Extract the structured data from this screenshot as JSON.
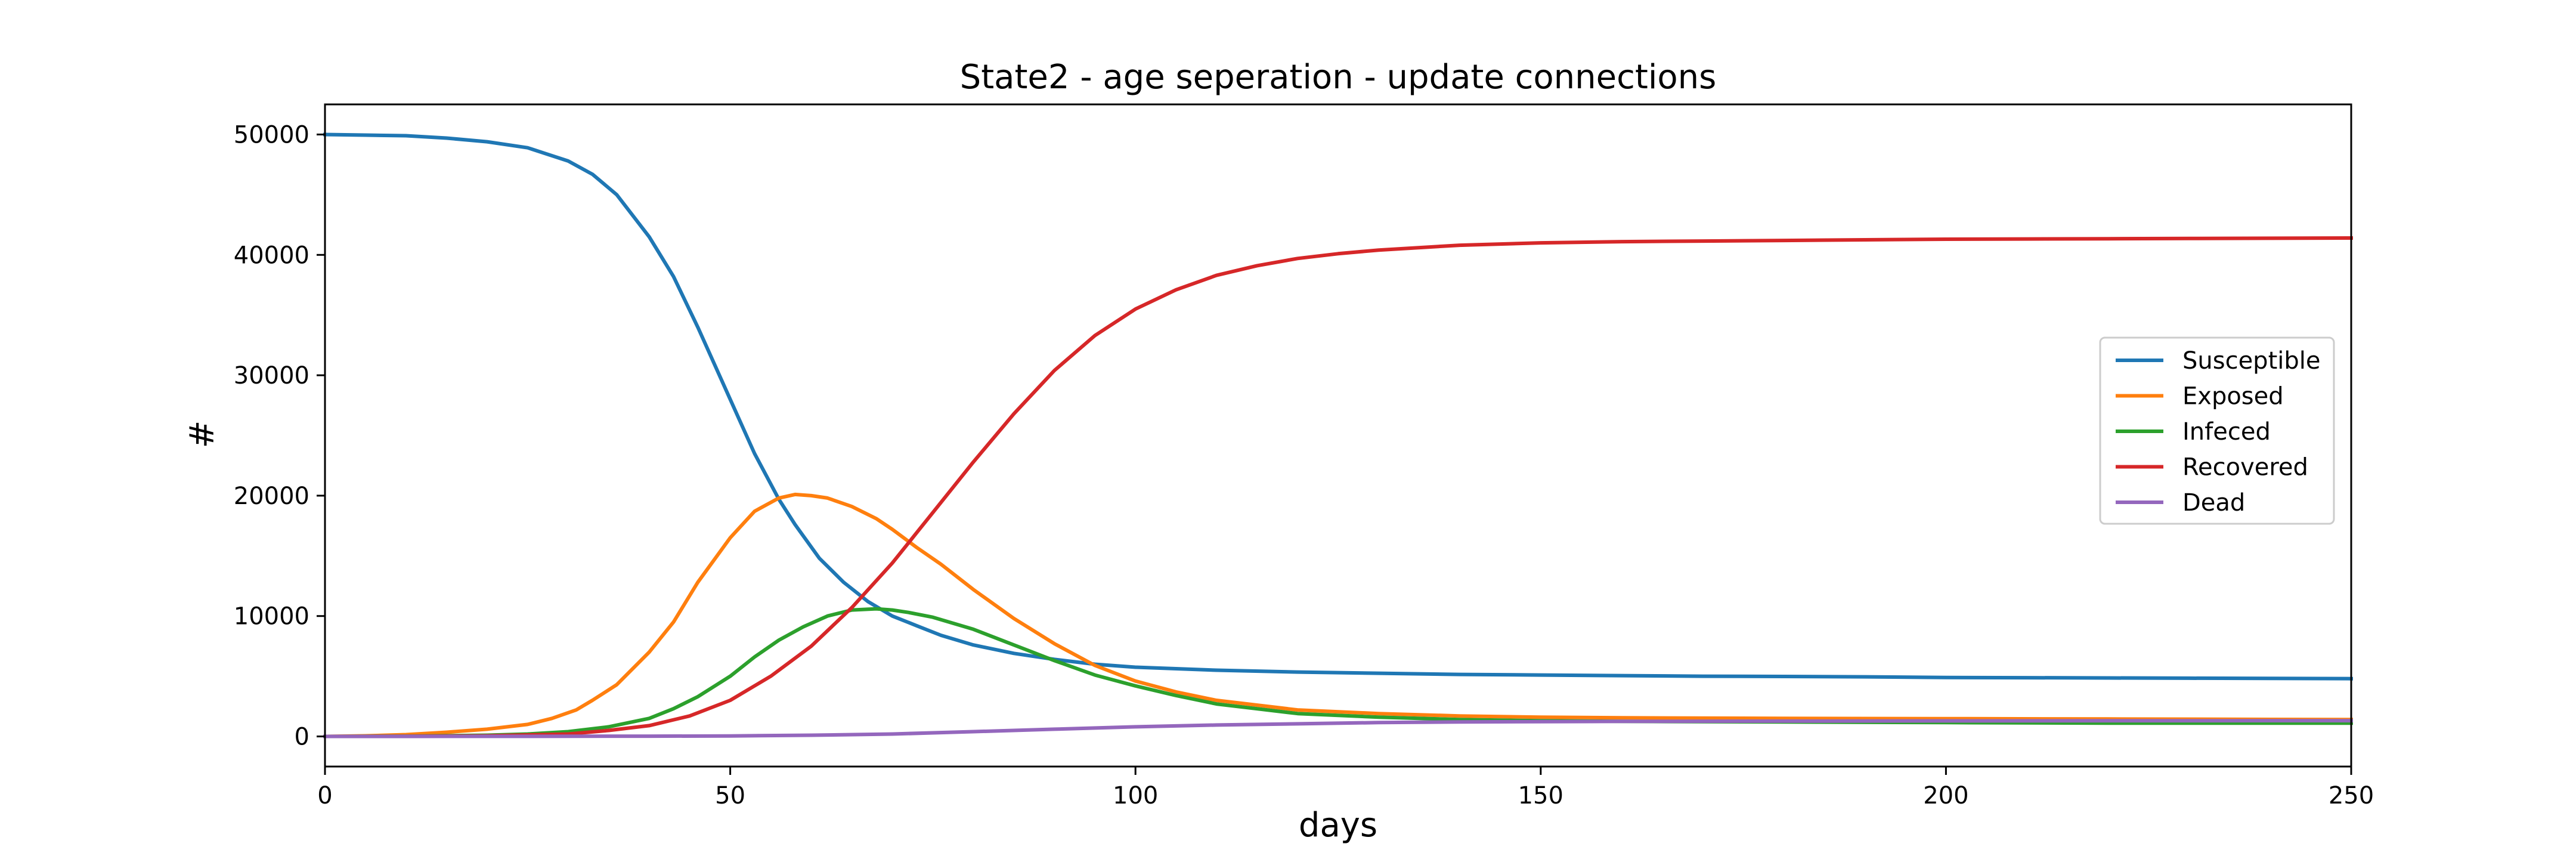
{
  "chart_data": {
    "type": "line",
    "title": "State2 - age seperation - update connections",
    "xlabel": "days",
    "ylabel": "#",
    "xlim": [
      0,
      250
    ],
    "ylim": [
      -2500,
      52500
    ],
    "xticks": [
      0,
      50,
      100,
      150,
      200,
      250
    ],
    "yticks": [
      0,
      10000,
      20000,
      30000,
      40000,
      50000
    ],
    "grid": false,
    "legend_position": "center-right",
    "series": [
      {
        "name": "Susceptible",
        "color": "#1f77b4",
        "x": [
          0,
          5,
          10,
          15,
          20,
          25,
          30,
          33,
          36,
          40,
          43,
          46,
          50,
          53,
          56,
          58,
          61,
          64,
          67,
          70,
          73,
          76,
          80,
          85,
          90,
          95,
          100,
          110,
          120,
          130,
          140,
          150,
          160,
          170,
          180,
          190,
          200,
          210,
          220,
          230,
          240,
          250
        ],
        "y": [
          50000,
          49950,
          49900,
          49700,
          49400,
          48900,
          47800,
          46700,
          45000,
          41500,
          38200,
          34000,
          28000,
          23500,
          19700,
          17600,
          14800,
          12800,
          11200,
          10000,
          9200,
          8400,
          7600,
          6900,
          6400,
          6000,
          5750,
          5500,
          5350,
          5250,
          5150,
          5100,
          5050,
          5000,
          4980,
          4950,
          4900,
          4880,
          4860,
          4840,
          4820,
          4800
        ]
      },
      {
        "name": "Exposed",
        "color": "#ff7f0e",
        "x": [
          0,
          5,
          10,
          15,
          20,
          25,
          28,
          31,
          33,
          36,
          40,
          43,
          46,
          50,
          53,
          56,
          58,
          60,
          62,
          65,
          68,
          70,
          73,
          76,
          80,
          85,
          90,
          95,
          100,
          105,
          110,
          120,
          130,
          140,
          150,
          160,
          180,
          200,
          220,
          250
        ],
        "y": [
          0,
          50,
          150,
          350,
          600,
          1000,
          1500,
          2200,
          3000,
          4300,
          7000,
          9500,
          12800,
          16500,
          18700,
          19800,
          20100,
          20000,
          19800,
          19100,
          18100,
          17200,
          15700,
          14300,
          12200,
          9800,
          7700,
          5900,
          4600,
          3700,
          3000,
          2200,
          1900,
          1700,
          1600,
          1550,
          1500,
          1480,
          1450,
          1400
        ]
      },
      {
        "name": "Infeced",
        "color": "#2ca02c",
        "x": [
          0,
          10,
          20,
          25,
          30,
          35,
          40,
          43,
          46,
          50,
          53,
          56,
          59,
          62,
          65,
          68,
          70,
          72,
          75,
          80,
          85,
          90,
          95,
          100,
          105,
          110,
          115,
          120,
          130,
          140,
          150,
          160,
          180,
          200,
          220,
          250
        ],
        "y": [
          0,
          20,
          100,
          200,
          400,
          800,
          1500,
          2300,
          3300,
          5000,
          6600,
          8000,
          9100,
          10000,
          10500,
          10600,
          10500,
          10300,
          9900,
          8900,
          7600,
          6300,
          5100,
          4200,
          3400,
          2700,
          2300,
          1900,
          1600,
          1400,
          1300,
          1250,
          1200,
          1150,
          1100,
          1100
        ]
      },
      {
        "name": "Recovered",
        "color": "#d62728",
        "x": [
          0,
          10,
          20,
          30,
          35,
          40,
          45,
          50,
          55,
          60,
          65,
          70,
          75,
          80,
          85,
          90,
          95,
          100,
          105,
          110,
          115,
          120,
          125,
          130,
          140,
          150,
          160,
          170,
          180,
          190,
          200,
          210,
          220,
          230,
          240,
          250
        ],
        "y": [
          0,
          10,
          50,
          200,
          500,
          900,
          1700,
          3000,
          5000,
          7500,
          10700,
          14400,
          18600,
          22800,
          26800,
          30400,
          33300,
          35500,
          37100,
          38300,
          39100,
          39700,
          40100,
          40400,
          40800,
          41000,
          41100,
          41150,
          41200,
          41250,
          41300,
          41320,
          41340,
          41360,
          41380,
          41400
        ]
      },
      {
        "name": "Dead",
        "color": "#9467bd",
        "x": [
          0,
          20,
          40,
          50,
          60,
          70,
          80,
          90,
          100,
          110,
          120,
          130,
          140,
          150,
          160,
          180,
          200,
          220,
          250
        ],
        "y": [
          0,
          5,
          20,
          40,
          100,
          200,
          400,
          600,
          800,
          950,
          1050,
          1150,
          1200,
          1230,
          1250,
          1270,
          1290,
          1300,
          1310
        ]
      }
    ]
  }
}
